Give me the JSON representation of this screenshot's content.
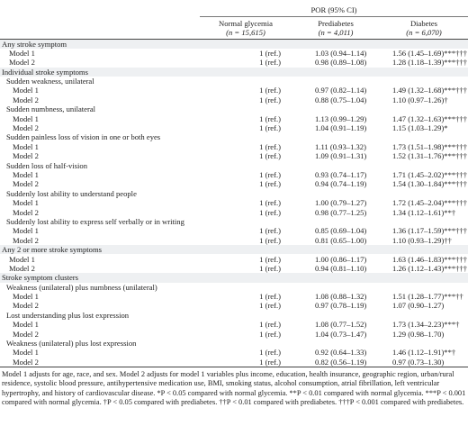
{
  "header": {
    "group_label": "POR (95% CI)",
    "columns": [
      {
        "label": "Normal glycemia",
        "n": "(n = 15,615)"
      },
      {
        "label": "Prediabetes",
        "n": "(n = 4,011)"
      },
      {
        "label": "Diabetes",
        "n": "(n = 6,070)"
      }
    ]
  },
  "rows": [
    {
      "type": "section",
      "label": "Any stroke symptom"
    },
    {
      "type": "sec-model",
      "label": "Model 1",
      "v": [
        "1 (ref.)",
        "1.03 (0.94–1.14)",
        "1.56 (1.45–1.69)***†††"
      ]
    },
    {
      "type": "sec-model",
      "label": "Model 2",
      "v": [
        "1 (ref.)",
        "0.98 (0.89–1.08)",
        "1.28 (1.18–1.39)***†††"
      ]
    },
    {
      "type": "section",
      "label": "Individual stroke symptoms"
    },
    {
      "type": "subsec",
      "label": "Sudden weakness, unilateral"
    },
    {
      "type": "model",
      "label": "Model 1",
      "v": [
        "1 (ref.)",
        "0.97 (0.82–1.14)",
        "1.49 (1.32–1.68)***†††"
      ]
    },
    {
      "type": "model",
      "label": "Model 2",
      "v": [
        "1 (ref.)",
        "0.88 (0.75–1.04)",
        "1.10 (0.97–1.26)†"
      ]
    },
    {
      "type": "subsec",
      "label": "Sudden numbness, unilateral"
    },
    {
      "type": "model",
      "label": "Model 1",
      "v": [
        "1 (ref.)",
        "1.13 (0.99–1.29)",
        "1.47 (1.32–1.63)***†††"
      ]
    },
    {
      "type": "model",
      "label": "Model 2",
      "v": [
        "1 (ref.)",
        "1.04 (0.91–1.19)",
        "1.15 (1.03–1.29)*"
      ]
    },
    {
      "type": "subsec",
      "label": "Sudden painless loss of vision in one or both eyes"
    },
    {
      "type": "model",
      "label": "Model 1",
      "v": [
        "1 (ref.)",
        "1.11 (0.93–1.32)",
        "1.73 (1.51–1.98)***†††"
      ]
    },
    {
      "type": "model",
      "label": "Model 2",
      "v": [
        "1 (ref.)",
        "1.09 (0.91–1.31)",
        "1.52 (1.31–1.76)***†††"
      ]
    },
    {
      "type": "subsec",
      "label": "Sudden loss of half-vision"
    },
    {
      "type": "model",
      "label": "Model 1",
      "v": [
        "1 (ref.)",
        "0.93 (0.74–1.17)",
        "1.71 (1.45–2.02)***†††"
      ]
    },
    {
      "type": "model",
      "label": "Model 2",
      "v": [
        "1 (ref.)",
        "0.94 (0.74–1.19)",
        "1.54 (1.30–1.84)***†††"
      ]
    },
    {
      "type": "subsec",
      "label": "Suddenly lost ability to understand people"
    },
    {
      "type": "model",
      "label": "Model 1",
      "v": [
        "1 (ref.)",
        "1.00 (0.79–1.27)",
        "1.72 (1.45–2.04)***†††"
      ]
    },
    {
      "type": "model",
      "label": "Model 2",
      "v": [
        "1 (ref.)",
        "0.98 (0.77–1.25)",
        "1.34 (1.12–1.61)**†"
      ]
    },
    {
      "type": "subsec",
      "label": "Suddenly lost ability to express self verbally or in writing"
    },
    {
      "type": "model",
      "label": "Model 1",
      "v": [
        "1 (ref.)",
        "0.85 (0.69–1.04)",
        "1.36 (1.17–1.59)***†††"
      ]
    },
    {
      "type": "model",
      "label": "Model 2",
      "v": [
        "1 (ref.)",
        "0.81 (0.65–1.00)",
        "1.10 (0.93–1.29)††"
      ]
    },
    {
      "type": "section",
      "label": "Any 2 or more stroke symptoms"
    },
    {
      "type": "sec-model",
      "label": "Model 1",
      "v": [
        "1 (ref.)",
        "1.00 (0.86–1.17)",
        "1.63 (1.46–1.83)***†††"
      ]
    },
    {
      "type": "sec-model",
      "label": "Model 2",
      "v": [
        "1 (ref.)",
        "0.94 (0.81–1.10)",
        "1.26 (1.12–1.43)***†††"
      ]
    },
    {
      "type": "section",
      "label": "Stroke symptom clusters"
    },
    {
      "type": "subsec",
      "label": "Weakness (unilateral) plus numbness (unilateral)"
    },
    {
      "type": "model",
      "label": "Model 1",
      "v": [
        "1 (ref.)",
        "1.08 (0.88–1.32)",
        "1.51 (1.28–1.77)***††"
      ]
    },
    {
      "type": "model",
      "label": "Model 2",
      "v": [
        "1 (ref.)",
        "0.97 (0.78–1.19)",
        "1.07 (0.90–1.27)"
      ]
    },
    {
      "type": "subsec",
      "label": "Lost understanding plus lost expression"
    },
    {
      "type": "model",
      "label": "Model 1",
      "v": [
        "1 (ref.)",
        "1.08 (0.77–1.52)",
        "1.73 (1.34–2.23)***†"
      ]
    },
    {
      "type": "model",
      "label": "Model 2",
      "v": [
        "1 (ref.)",
        "1.04 (0.73–1.47)",
        "1.29 (0.98–1.70)"
      ]
    },
    {
      "type": "subsec",
      "label": "Weakness (unilateral) plus lost expression"
    },
    {
      "type": "model",
      "label": "Model 1",
      "v": [
        "1 (ref.)",
        "0.92 (0.64–1.33)",
        "1.46 (1.12–1.91)**†"
      ]
    },
    {
      "type": "model",
      "label": "Model 2",
      "v": [
        "1 (ref.)",
        "0.82 (0.56–1.19)",
        "0.97 (0.73–1.30)"
      ]
    }
  ],
  "footnote": "Model 1 adjusts for age, race, and sex. Model 2 adjusts for model 1 variables plus income, education, health insurance, geographic region, urban/rural residence, systolic blood pressure, antihypertensive medication use, BMI, smoking status, alcohol consumption, atrial fibrillation, left ventricular hypertrophy, and history of cardiovascular disease. *P < 0.05 compared with normal glycemia. **P < 0.01 compared with normal glycemia. ***P < 0.001 compared with normal glycemia. †P < 0.05 compared with prediabetes. ††P < 0.01 compared with prediabetes. †††P < 0.001 compared with prediabetes."
}
